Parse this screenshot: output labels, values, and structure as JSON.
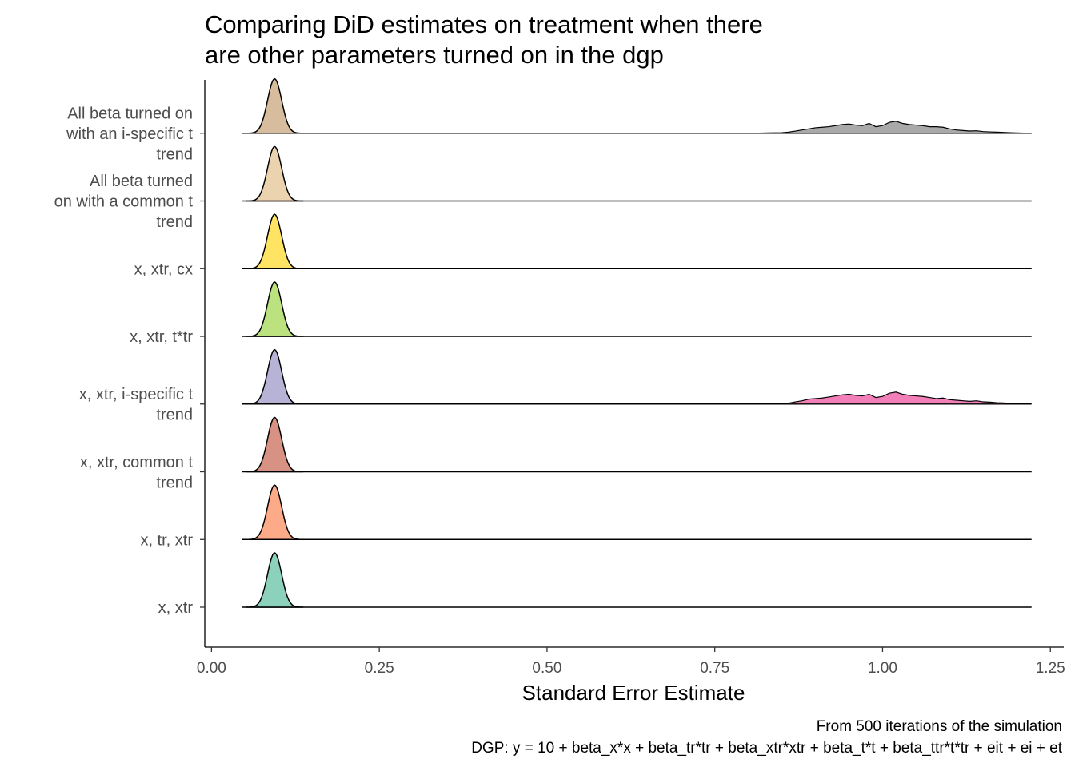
{
  "chart_data": {
    "type": "ridgeline-density",
    "title": "Comparing DiD estimates on treatment when there are other parameters turned on in the dgp",
    "title_lines": [
      "Comparing DiD estimates on treatment when there",
      "are other parameters turned on in the dgp"
    ],
    "xlabel": "Standard Error Estimate",
    "xlim": [
      -0.01,
      1.27
    ],
    "x_ticks": [
      0.0,
      0.25,
      0.5,
      0.75,
      1.0,
      1.25
    ],
    "x_tick_labels": [
      "0.00",
      "0.25",
      "0.50",
      "0.75",
      "1.00",
      "1.25"
    ],
    "caption_lines": [
      "From 500 iterations of the simulation",
      "DGP: y = 10 + beta_x*x + beta_tr*tr + beta_xtr*xtr + beta_t*t + beta_ttr*t*tr + eit + ei + et"
    ],
    "baseline_range": [
      0.045,
      1.222
    ],
    "series": [
      {
        "label_lines": [
          "x, xtr"
        ],
        "color": "#66C2A5",
        "peaks": [
          {
            "mean": 0.094,
            "sd": 0.0105,
            "height": 1.0
          }
        ]
      },
      {
        "label_lines": [
          "x, tr, xtr"
        ],
        "color": "#FC8D62",
        "peaks": [
          {
            "mean": 0.094,
            "sd": 0.0105,
            "height": 1.0
          }
        ]
      },
      {
        "label_lines": [
          "x, xtr, common t",
          "trend"
        ],
        "color": "#C96E5A",
        "peaks": [
          {
            "mean": 0.094,
            "sd": 0.0105,
            "height": 1.0
          }
        ]
      },
      {
        "label_lines": [
          "x, xtr, i-specific t",
          "trend"
        ],
        "color": "#9E9AC8",
        "peaks": [
          {
            "mean": 0.094,
            "sd": 0.0105,
            "height": 1.0
          }
        ],
        "tail": {
          "color": "#F37FB8",
          "range": [
            0.8,
            1.215
          ],
          "points": [
            [
              0.8,
              0.0
            ],
            [
              0.82,
              0.005
            ],
            [
              0.84,
              0.01
            ],
            [
              0.86,
              0.015
            ],
            [
              0.87,
              0.04
            ],
            [
              0.88,
              0.06
            ],
            [
              0.89,
              0.09
            ],
            [
              0.9,
              0.1
            ],
            [
              0.91,
              0.11
            ],
            [
              0.92,
              0.13
            ],
            [
              0.93,
              0.15
            ],
            [
              0.94,
              0.17
            ],
            [
              0.95,
              0.18
            ],
            [
              0.96,
              0.16
            ],
            [
              0.97,
              0.15
            ],
            [
              0.98,
              0.18
            ],
            [
              0.99,
              0.12
            ],
            [
              1.0,
              0.14
            ],
            [
              1.01,
              0.2
            ],
            [
              1.02,
              0.22
            ],
            [
              1.03,
              0.18
            ],
            [
              1.04,
              0.16
            ],
            [
              1.05,
              0.15
            ],
            [
              1.06,
              0.14
            ],
            [
              1.07,
              0.12
            ],
            [
              1.08,
              0.1
            ],
            [
              1.09,
              0.11
            ],
            [
              1.1,
              0.08
            ],
            [
              1.11,
              0.07
            ],
            [
              1.12,
              0.06
            ],
            [
              1.13,
              0.05
            ],
            [
              1.14,
              0.06
            ],
            [
              1.15,
              0.04
            ],
            [
              1.16,
              0.035
            ],
            [
              1.17,
              0.025
            ],
            [
              1.18,
              0.02
            ],
            [
              1.19,
              0.012
            ],
            [
              1.2,
              0.006
            ],
            [
              1.215,
              0.0
            ]
          ]
        }
      },
      {
        "label_lines": [
          "x, xtr, t*tr"
        ],
        "color": "#A6D854",
        "peaks": [
          {
            "mean": 0.094,
            "sd": 0.0105,
            "height": 1.0
          }
        ]
      },
      {
        "label_lines": [
          "x, xtr, cx"
        ],
        "color": "#FFD92F",
        "peaks": [
          {
            "mean": 0.094,
            "sd": 0.0105,
            "height": 1.0
          }
        ]
      },
      {
        "label_lines": [
          "All beta turned",
          "on with a common t",
          "trend"
        ],
        "color": "#E5C494",
        "peaks": [
          {
            "mean": 0.094,
            "sd": 0.0105,
            "height": 1.0
          }
        ]
      },
      {
        "label_lines": [
          "All beta turned on",
          "with an i-specific t",
          "trend"
        ],
        "color": "#C9A77E",
        "peaks": [
          {
            "mean": 0.094,
            "sd": 0.0105,
            "height": 1.0
          }
        ],
        "tail": {
          "color": "#A9A9A9",
          "range": [
            0.81,
            1.215
          ],
          "points": [
            [
              0.81,
              0.0
            ],
            [
              0.83,
              0.005
            ],
            [
              0.85,
              0.01
            ],
            [
              0.86,
              0.02
            ],
            [
              0.87,
              0.04
            ],
            [
              0.88,
              0.06
            ],
            [
              0.89,
              0.08
            ],
            [
              0.9,
              0.1
            ],
            [
              0.91,
              0.11
            ],
            [
              0.92,
              0.12
            ],
            [
              0.93,
              0.14
            ],
            [
              0.94,
              0.16
            ],
            [
              0.95,
              0.17
            ],
            [
              0.96,
              0.15
            ],
            [
              0.97,
              0.14
            ],
            [
              0.98,
              0.18
            ],
            [
              0.99,
              0.12
            ],
            [
              1.0,
              0.14
            ],
            [
              1.01,
              0.2
            ],
            [
              1.02,
              0.22
            ],
            [
              1.03,
              0.18
            ],
            [
              1.04,
              0.16
            ],
            [
              1.05,
              0.15
            ],
            [
              1.06,
              0.14
            ],
            [
              1.07,
              0.12
            ],
            [
              1.08,
              0.12
            ],
            [
              1.09,
              0.11
            ],
            [
              1.1,
              0.08
            ],
            [
              1.11,
              0.06
            ],
            [
              1.12,
              0.05
            ],
            [
              1.13,
              0.04
            ],
            [
              1.14,
              0.045
            ],
            [
              1.15,
              0.03
            ],
            [
              1.16,
              0.025
            ],
            [
              1.17,
              0.02
            ],
            [
              1.18,
              0.015
            ],
            [
              1.19,
              0.01
            ],
            [
              1.2,
              0.005
            ],
            [
              1.215,
              0.0
            ]
          ]
        }
      }
    ]
  }
}
